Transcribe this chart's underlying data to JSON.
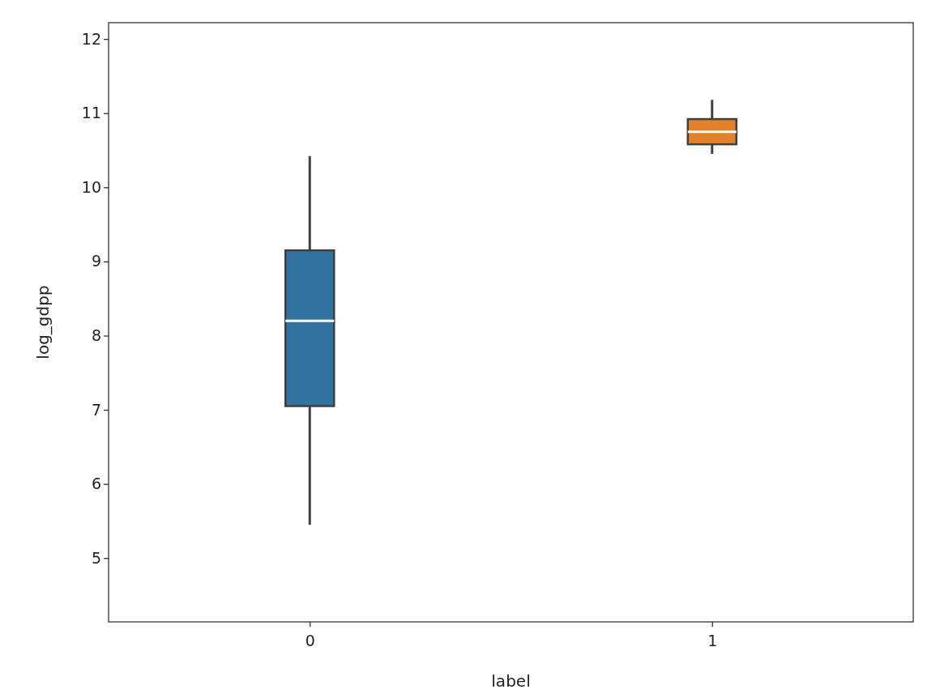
{
  "chart_data": {
    "type": "box",
    "xlabel": "label",
    "ylabel": "log_gdpp",
    "categories": [
      "0",
      "1"
    ],
    "colors": [
      "#3274a1",
      "#e1812c"
    ],
    "boxes": [
      {
        "low": 5.45,
        "q1": 7.05,
        "median": 8.2,
        "q3": 9.15,
        "high": 10.42
      },
      {
        "low": 10.45,
        "q1": 10.58,
        "median": 10.75,
        "q3": 10.92,
        "high": 11.18
      }
    ],
    "ylim": [
      4.14,
      12.22
    ],
    "yticks": [
      5,
      6,
      7,
      8,
      9,
      10,
      11,
      12
    ],
    "grid": false
  }
}
